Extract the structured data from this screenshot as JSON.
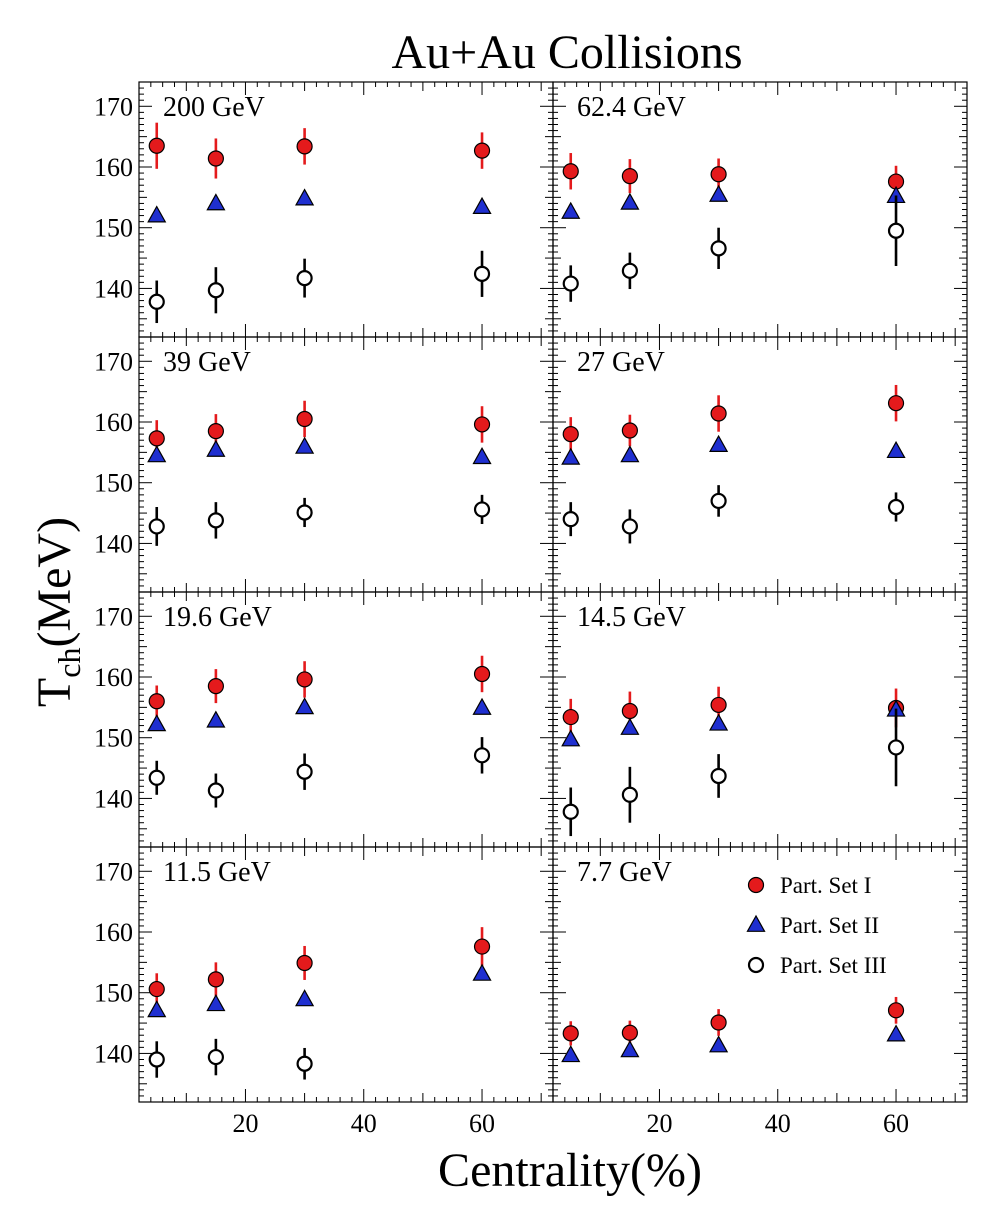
{
  "chart_data": {
    "type": "scatter",
    "title": "Au+Au Collisions",
    "xlabel": "Centrality(%)",
    "ylabel_main": "T",
    "ylabel_sub": "ch",
    "ylabel_unit": "(MeV)",
    "xlim": [
      2,
      72
    ],
    "ylim": [
      132,
      174
    ],
    "x_ticks": [
      20,
      40,
      60
    ],
    "y_ticks": [
      140,
      150,
      160,
      170
    ],
    "x": [
      5,
      15,
      30,
      60
    ],
    "legend": {
      "position": "top-right of last panel",
      "entries": [
        "Part. Set I",
        "Part. Set II",
        "Part. Set III"
      ]
    },
    "series_styles": [
      {
        "name": "Part. Set I",
        "marker": "filled-circle",
        "fill": "#e41a1c",
        "err_color": "#e41a1c"
      },
      {
        "name": "Part. Set II",
        "marker": "filled-triangle",
        "fill": "#1f2fd0",
        "err_color": "#1f2fd0"
      },
      {
        "name": "Part. Set III",
        "marker": "open-circle",
        "fill": "#ffffff",
        "err_color": "#000000"
      }
    ],
    "panels": [
      {
        "label": "200 GeV",
        "series": [
          {
            "name": "Part. Set I",
            "values": [
              163.5,
              161.4,
              163.4,
              162.7
            ],
            "err": [
              3.8,
              3.3,
              3.0,
              3.0
            ]
          },
          {
            "name": "Part. Set II",
            "values": [
              152.0,
              154.0,
              154.8,
              153.4
            ],
            "err": [
              0,
              0,
              0,
              0
            ]
          },
          {
            "name": "Part. Set III",
            "values": [
              137.8,
              139.7,
              141.7,
              142.4
            ],
            "err": [
              3.5,
              3.8,
              3.2,
              3.8
            ]
          }
        ]
      },
      {
        "label": "62.4 GeV",
        "series": [
          {
            "name": "Part. Set I",
            "values": [
              159.3,
              158.5,
              158.8,
              157.6
            ],
            "err": [
              3.0,
              2.8,
              2.6,
              2.6
            ]
          },
          {
            "name": "Part. Set II",
            "values": [
              152.6,
              154.1,
              155.4,
              155.2
            ],
            "err": [
              0,
              0,
              0,
              0
            ]
          },
          {
            "name": "Part. Set III",
            "values": [
              140.8,
              142.9,
              146.6,
              149.5
            ],
            "err": [
              3.0,
              3.0,
              3.4,
              5.8
            ]
          }
        ]
      },
      {
        "label": "39 GeV",
        "series": [
          {
            "name": "Part. Set I",
            "values": [
              157.3,
              158.5,
              160.5,
              159.6
            ],
            "err": [
              3.0,
              2.8,
              3.0,
              3.0
            ]
          },
          {
            "name": "Part. Set II",
            "values": [
              154.5,
              155.4,
              155.9,
              154.2
            ],
            "err": [
              0,
              0,
              0,
              0
            ]
          },
          {
            "name": "Part. Set III",
            "values": [
              142.8,
              143.8,
              145.1,
              145.6
            ],
            "err": [
              3.2,
              3.0,
              2.4,
              2.4
            ]
          }
        ]
      },
      {
        "label": "27 GeV",
        "series": [
          {
            "name": "Part. Set I",
            "values": [
              158.0,
              158.6,
              161.4,
              163.1
            ],
            "err": [
              2.8,
              2.6,
              3.0,
              3.0
            ]
          },
          {
            "name": "Part. Set II",
            "values": [
              154.1,
              154.5,
              156.2,
              155.2
            ],
            "err": [
              0,
              0,
              0,
              0
            ]
          },
          {
            "name": "Part. Set III",
            "values": [
              144.0,
              142.8,
              147.0,
              146.0
            ],
            "err": [
              2.8,
              2.8,
              2.6,
              2.4
            ]
          }
        ]
      },
      {
        "label": "19.6 GeV",
        "series": [
          {
            "name": "Part. Set I",
            "values": [
              156.0,
              158.5,
              159.6,
              160.5
            ],
            "err": [
              2.6,
              2.8,
              3.0,
              3.0
            ]
          },
          {
            "name": "Part. Set II",
            "values": [
              152.2,
              152.8,
              155.0,
              154.9
            ],
            "err": [
              0,
              0,
              0,
              0
            ]
          },
          {
            "name": "Part. Set III",
            "values": [
              143.4,
              141.3,
              144.4,
              147.1
            ],
            "err": [
              2.8,
              2.8,
              3.0,
              3.0
            ]
          }
        ]
      },
      {
        "label": "14.5 GeV",
        "series": [
          {
            "name": "Part. Set I",
            "values": [
              153.4,
              154.4,
              155.4,
              154.9
            ],
            "err": [
              3.0,
              3.2,
              3.0,
              3.2
            ]
          },
          {
            "name": "Part. Set II",
            "values": [
              149.7,
              151.6,
              152.3,
              154.6
            ],
            "err": [
              0,
              0,
              0,
              0
            ]
          },
          {
            "name": "Part. Set III",
            "values": [
              137.8,
              140.6,
              143.7,
              148.4
            ],
            "err": [
              4.0,
              4.6,
              3.6,
              6.4
            ]
          }
        ]
      },
      {
        "label": "11.5 GeV",
        "series": [
          {
            "name": "Part. Set I",
            "values": [
              150.6,
              152.2,
              154.9,
              157.6
            ],
            "err": [
              2.6,
              2.8,
              2.8,
              3.2
            ]
          },
          {
            "name": "Part. Set II",
            "values": [
              147.1,
              148.1,
              148.9,
              153.1
            ],
            "err": [
              0,
              0,
              0,
              0
            ]
          },
          {
            "name": "Part. Set III",
            "values": [
              139.0,
              139.4,
              138.3,
              null
            ],
            "err": [
              3.0,
              3.0,
              2.6,
              0
            ]
          }
        ]
      },
      {
        "label": "7.7 GeV",
        "series": [
          {
            "name": "Part. Set I",
            "values": [
              143.3,
              143.4,
              145.1,
              147.1
            ],
            "err": [
              2.0,
              2.0,
              2.2,
              2.2
            ]
          },
          {
            "name": "Part. Set II",
            "values": [
              139.7,
              140.5,
              141.3,
              143.1
            ],
            "err": [
              0,
              0,
              0,
              0
            ]
          },
          {
            "name": "Part. Set III",
            "values": [
              null,
              null,
              null,
              null
            ],
            "err": [
              0,
              0,
              0,
              0
            ]
          }
        ]
      }
    ]
  }
}
